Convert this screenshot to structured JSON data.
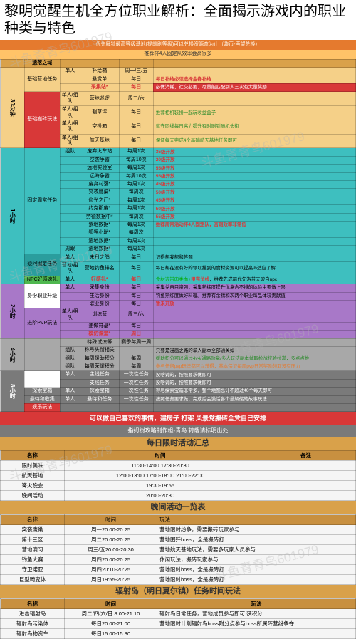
{
  "title": "黎明觉醒生机全方位职业解析：全面揭示游戏内的职业种类与特色",
  "top_banner": "优先解锁最高等级基地(提前刷等级)可以兑换资源盒为止（装币-声望兑换）",
  "sub_banner": "推荐排4人固定队效率会高很多",
  "watermarks": [
    "斗鱼青青鸟601979",
    "斗鱼青青鸟601979",
    "斗鱼青青鸟601979",
    "斗鱼青青鸟601979",
    "斗鱼青青鸟601979",
    "斗鱼青青鸟601979"
  ],
  "red_free_banner": "可以做自己喜欢的事情，建房子 打架  风景党搬砖全凭自己安排",
  "footer_credit": "指拇树攻略制作组-青鸟 转载请标明出处",
  "daily_summary_header": "每日限时活动汇总",
  "evening_header": "晚间活动一览表",
  "radiation_header": "辐射岛（明日夏尔镇）任务时间玩法",
  "time_blocks": [
    {
      "time": "30分钟",
      "bg": "bg-gold-light",
      "tasks": [
        {
          "name": "基础营地任务",
          "bg": "bg-gold-light",
          "rows": [
            {
              "sub": "单人",
              "act": "补给箱",
              "freq": "周一/三/五",
              "note": ""
            },
            {
              "sub": "",
              "act": "悬赏单",
              "freq": "每日",
              "note": "每日补给必须选择金券补给",
              "note_cls": "txt-red"
            },
            {
              "sub": "",
              "act": "<span class='txt-red'>采集站*</span>",
              "freq": "<span class='txt-red'>每日</span>",
              "note": "必做消耗，社交必要，尽量能匹配别人三次有大量奖励",
              "note_cls": "txt-green bg-red",
              "note_style": "color:#fff"
            }
          ]
        },
        {
          "name": "基础搬砖玩法",
          "bg": "bg-red",
          "name_style": "color:#fff",
          "rows": [
            {
              "sub": "单人/组队",
              "act": "营地巡逻",
              "freq": "周三/六",
              "note": ""
            },
            {
              "sub": "单人/组队",
              "act": "割草坪",
              "freq": "每日",
              "note": "推荐相机装扮一起玩收益盒子",
              "note_cls": "txt-green"
            },
            {
              "sub": "单人/组队",
              "act": "空投箱",
              "freq": "每日",
              "note": "蓝守同线每日高力提升有时刷到随机头衔",
              "note_cls": "txt-green"
            },
            {
              "sub": "单人/组队",
              "act": "航天基地",
              "freq": "每日",
              "note": "保证每天完成4个基础航天基地任务即可",
              "note_cls": "txt-green"
            }
          ]
        }
      ]
    },
    {
      "time": "1小时",
      "bg": "bg-cyan",
      "tasks": [
        {
          "name": "固定周常任务",
          "bg": "bg-cyan",
          "rows": [
            {
              "sub": "组队",
              "act": "废弃火车站",
              "freq": "每周1次",
              "note": "35级开放",
              "note_cls": "txt-red"
            },
            {
              "sub": "",
              "act": "空袭争霸",
              "freq": "每周10次",
              "note": "20级开放",
              "note_cls": "txt-red"
            },
            {
              "sub": "",
              "act": "远地实验室",
              "freq": "每周1次",
              "note": "55级开放",
              "note_cls": "txt-red"
            },
            {
              "sub": "",
              "act": "远海争霸",
              "freq": "每周10次",
              "note": "55级开放",
              "note_cls": "txt-red"
            },
            {
              "sub": "",
              "act": "废弃村落*",
              "freq": "每周1次",
              "note": "45级开放",
              "note_cls": "txt-red"
            },
            {
              "sub": "",
              "act": "突袭鹰巢*",
              "freq": "每周次",
              "note": "50级开放",
              "note_cls": "txt-red"
            },
            {
              "sub": "",
              "act": "仰光之门*",
              "freq": "每周1次",
              "note": "45级开放",
              "note_cls": "txt-red"
            },
            {
              "sub": "",
              "act": "约克郡废*",
              "freq": "每周1次",
              "note": "50级开放",
              "note_cls": "txt-red"
            },
            {
              "sub": "",
              "act": "劳德数据中*",
              "freq": "每周次",
              "note": "55级开放",
              "note_cls": "txt-red"
            },
            {
              "sub": "",
              "act": "紫地数据*",
              "freq": "每周1次",
              "note": "推荐周常活动排4人固定队，否则效率非常低",
              "note_cls": "txt-red"
            },
            {
              "sub": "",
              "act": "狐狸小助*",
              "freq": "每周次",
              "note": ""
            },
            {
              "sub": "",
              "act": "遗地数据*",
              "freq": "每周1次",
              "note": ""
            },
            {
              "sub": "周跟",
              "act": "遗地数据*",
              "freq": "每周1次",
              "note": ""
            }
          ]
        },
        {
          "name": "疑问固定任务",
          "bg": "bg-cyan-dark",
          "rows": [
            {
              "sub": "单人",
              "act": "末日之鸽",
              "freq": "每日",
              "note": "记得帮我帮和答题"
            },
            {
              "sub": "营地/组队",
              "act": "营地钓鱼排名",
              "freq": "每日",
              "note": "每日帮在没有好的领取排到的食材资源可以提高%适应了解"
            }
          ]
        },
        {
          "name": "NPC好感速礼",
          "bg": "bg-green",
          "rows": [
            {
              "sub": "单人",
              "act": "<span class='txt-red'>好感礼*</span>",
              "freq": "<span class='txt-red'>每日</span>",
              "note": "<span style='color:#0a0'>食材选带肉类血+</span><span class='txt-red'>甲壳位线</span>，推荐先成前代先洛带天玻白npc"
            }
          ]
        }
      ]
    },
    {
      "time": "2小时",
      "bg": "bg-purple",
      "tasks": [
        {
          "name": "身份职业升级",
          "bg": "bg-white",
          "rows": [
            {
              "sub": "单人",
              "act": "采集身份",
              "freq": "每日",
              "note": "采集兑自目资强，采集熟练度提升优盒合不排的体验主要做上限"
            },
            {
              "sub": "",
              "act": "生活身份",
              "freq": "每日",
              "note": "钓鱼熟练度做好料理。推荐有余精和次两个职业每品体装贡献值"
            },
            {
              "sub": "",
              "act": "职业身份",
              "freq": "每日",
              "note": "暂未开放",
              "note_cls": "txt-red"
            }
          ]
        },
        {
          "name": "进阶PVP玩法",
          "bg": "bg-purple",
          "rows": [
            {
              "sub": "单人/组队",
              "act": "训练营",
              "freq": "周三/六",
              "note": ""
            },
            {
              "sub": "",
              "act": "速做符基*",
              "freq": "每日",
              "note": ""
            },
            {
              "sub": "",
              "act": "<span class='txt-red'>模仿课堂*</span>",
              "freq": "<span class='txt-red'>周日</span>",
              "note": ""
            }
          ]
        }
      ]
    },
    {
      "time": "4小时",
      "bg": "bg-gray",
      "tasks": [
        {
          "name": "",
          "bg": "bg-gray",
          "rows": [
            {
              "sub": "",
              "act": "特殊试炼等",
              "freq": "赛季每周一周",
              "note": ""
            },
            {
              "sub": "组队",
              "act": "称号头衔相关",
              "freq": "",
              "note": "只要是漫画之路的单人副本全部通关掉",
              "note_cls": ""
            },
            {
              "sub": "组队",
              "act": "每周援助积分",
              "sub2": "通系军4v4",
              "freq": "每周",
              "note": "援助积分可以通过4v4/通路勋章/多人玩法副本做取枪战校验拉满，多点点推",
              "note_cls": "txt-green"
            },
            {
              "sub": "组队",
              "act": "每周荣耀积分",
              "sub2": "pvp玩法",
              "freq": "每周",
              "note": "参与任何pvp玩法都可以获得，基本保证每周pvp日常奖励领取没有压力",
              "note_cls": "txt-orange"
            }
          ]
        }
      ]
    },
    {
      "time": "8小时",
      "bg": "bg-darkgray",
      "tasks": [
        {
          "name": "剧情任务",
          "bg": "bg-white",
          "rows": [
            {
              "sub": "单人",
              "act": "主线任务",
              "freq": "一次性任务",
              "note": "没啥说的，按照要求做即可"
            },
            {
              "sub": "",
              "act": "支线任务",
              "freq": "一次性任务",
              "note": "没啥说的，按照要求做即可"
            }
          ]
        },
        {
          "name": "探索宝箱",
          "bg": "bg-darkgray",
          "rows": [
            {
              "sub": "单人",
              "act": "探索宝箱",
              "freq": "一次性任务",
              "note": "得尽探索宝箱非常多，整个地图总计不超过40个每天即可"
            }
          ]
        },
        {
          "name": "悬待和收集",
          "bg": "bg-darkgray",
          "rows": [
            {
              "sub": "单人",
              "act": "悬待和任务",
              "freq": "一次性任务",
              "note": "按照任务要求做，完成后会激活各个量解储的故事玩法"
            }
          ]
        },
        {
          "name": "娱乐玩法",
          "bg": "bg-red",
          "rows": []
        }
      ]
    }
  ],
  "daily_summary": {
    "cols": [
      "名称",
      "时间",
      "备注"
    ],
    "rows": [
      [
        "限时美味",
        "11:30-14:00 17:30-20:30",
        ""
      ],
      [
        "航天基地",
        "12:00-13:00 17:00-18:00 21:00-22:00",
        ""
      ],
      [
        "篝火晚会",
        "19:30-19:55",
        ""
      ],
      [
        "晚间活动",
        "20:00-20:30",
        ""
      ]
    ]
  },
  "evening": {
    "cols": [
      "名称",
      "时间",
      "玩法"
    ],
    "rows": [
      [
        "名称",
        "时间",
        "玩法"
      ],
      [
        "突袭鹰巢",
        "周一20:00-20:25",
        "营地限时纷争，需要搬砖玩家参与"
      ],
      [
        "第十三区",
        "周二20:00-20:25",
        "营地围歼boss，全是搬砖打"
      ],
      [
        "营地演习",
        "周三/五20:00-20:30",
        "营地航天基地玩法，需要多玩家人员参与"
      ],
      [
        "钓鱼大赛",
        "周四20:00-20:25",
        "休闲玩法，搬砖玩家参与"
      ],
      [
        "守卫诺亚",
        "周四20:10-20:25",
        "营地限时boss，全是搬砖打"
      ],
      [
        "巨型畸变体",
        "周日19:55-20:25",
        "营地限时boss，全是搬砖打"
      ]
    ]
  },
  "radiation": {
    "cols": [
      "名称",
      "时间",
      "玩法"
    ],
    "rows": [
      [
        "进击辐射岛",
        "周二/四/六/日 8:00-21:10",
        "辐射岛日常任务，营地成员参与即可  获积分"
      ],
      [
        "辐射岛污染体",
        "每日20:00-21:00",
        "营地限时计划辐射岛boss附分点参与boss所属阵营纷争夺"
      ],
      [
        "辐射岛物资车",
        "每日15:00-15:30",
        ""
      ]
    ]
  }
}
